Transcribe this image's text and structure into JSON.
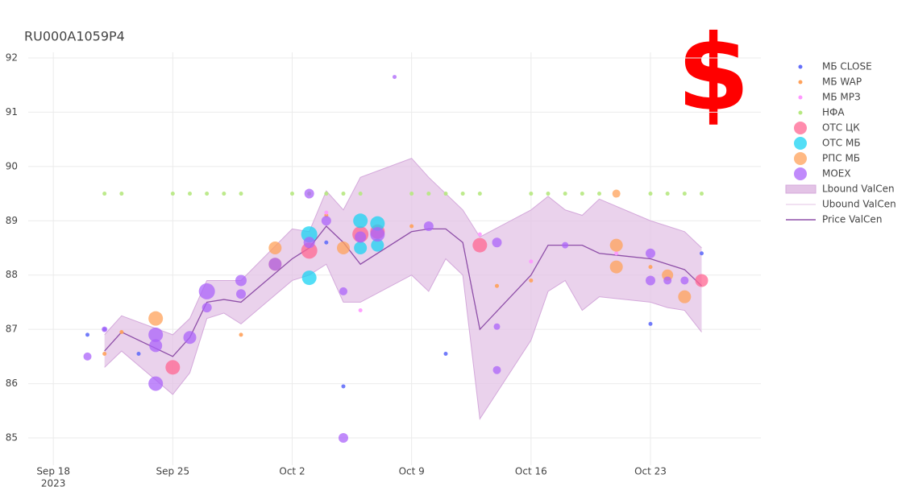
{
  "chart_data": {
    "type": "scatter",
    "title": "RU000A1059P4",
    "overlay_text": "$",
    "grid": true,
    "legend_position": "right",
    "xlim": [
      "2023-09-17",
      "2023-10-29"
    ],
    "ylim": [
      85,
      92.4
    ],
    "yticks": [
      85,
      86,
      87,
      88,
      89,
      90,
      91,
      92
    ],
    "xticks": [
      {
        "value": "2023-09-18",
        "label": "Sep 18",
        "sublabel": "2023"
      },
      {
        "value": "2023-09-25",
        "label": "Sep 25"
      },
      {
        "value": "2023-10-02",
        "label": "Oct 2"
      },
      {
        "value": "2023-10-09",
        "label": "Oct 9"
      },
      {
        "value": "2023-10-16",
        "label": "Oct 16"
      },
      {
        "value": "2023-10-23",
        "label": "Oct 23"
      }
    ],
    "series": [
      {
        "name": "МБ CLOSE",
        "mode": "markers",
        "color": "#636efa",
        "x": [
          "2023-09-20",
          "2023-09-21",
          "2023-09-23",
          "2023-10-04",
          "2023-10-05",
          "2023-10-11",
          "2023-10-23",
          "2023-10-26"
        ],
        "values": [
          86.9,
          87.0,
          86.55,
          88.6,
          85.95,
          86.55,
          87.1,
          88.4
        ]
      },
      {
        "name": "МБ WAP",
        "mode": "markers",
        "color": "#ffa15a",
        "x": [
          "2023-09-21",
          "2023-09-22",
          "2023-09-29",
          "2023-10-04",
          "2023-10-09",
          "2023-10-14",
          "2023-10-16",
          "2023-10-23"
        ],
        "values": [
          86.55,
          86.95,
          86.9,
          89.1,
          88.9,
          87.8,
          87.9,
          88.15
        ]
      },
      {
        "name": "МБ МРЗ",
        "mode": "markers",
        "color": "#ff97ff",
        "x": [
          "2023-10-04",
          "2023-10-06",
          "2023-10-13",
          "2023-10-16",
          "2023-10-21"
        ],
        "values": [
          89.15,
          87.35,
          88.75,
          88.25,
          88.4
        ]
      },
      {
        "name": "НФА",
        "mode": "markers",
        "color": "#b6e880",
        "x": [
          "2023-09-21",
          "2023-09-22",
          "2023-09-25",
          "2023-09-26",
          "2023-09-27",
          "2023-09-28",
          "2023-09-29",
          "2023-10-02",
          "2023-10-03",
          "2023-10-04",
          "2023-10-05",
          "2023-10-06",
          "2023-10-09",
          "2023-10-10",
          "2023-10-11",
          "2023-10-12",
          "2023-10-13",
          "2023-10-16",
          "2023-10-17",
          "2023-10-18",
          "2023-10-19",
          "2023-10-20",
          "2023-10-23",
          "2023-10-24",
          "2023-10-25",
          "2023-10-26"
        ],
        "values": [
          89.5,
          89.5,
          89.5,
          89.5,
          89.5,
          89.5,
          89.5,
          89.5,
          89.5,
          89.5,
          89.5,
          89.5,
          89.5,
          89.5,
          89.5,
          89.5,
          89.5,
          89.5,
          89.5,
          89.5,
          89.5,
          89.5,
          89.5,
          89.5,
          89.5,
          89.5
        ]
      },
      {
        "name": "ОТС ЦК",
        "mode": "bubbles",
        "color": "#ff6692",
        "x": [
          "2023-09-25",
          "2023-10-03",
          "2023-10-06",
          "2023-10-07",
          "2023-10-13",
          "2023-10-26"
        ],
        "values": [
          86.3,
          88.45,
          88.75,
          88.8,
          88.55,
          87.9
        ],
        "sizes": [
          18,
          20,
          20,
          18,
          18,
          16
        ]
      },
      {
        "name": "ОТС МБ",
        "mode": "bubbles",
        "color": "#19d3f3",
        "x": [
          "2023-10-03",
          "2023-10-03",
          "2023-10-06",
          "2023-10-06",
          "2023-10-07",
          "2023-10-07"
        ],
        "values": [
          87.95,
          88.75,
          89.0,
          88.5,
          88.95,
          88.55
        ],
        "sizes": [
          18,
          20,
          18,
          16,
          18,
          16
        ]
      },
      {
        "name": "РПС МБ",
        "mode": "bubbles",
        "color": "#ffa15a",
        "x": [
          "2023-09-24",
          "2023-10-01",
          "2023-10-01",
          "2023-10-05",
          "2023-10-21",
          "2023-10-21",
          "2023-10-21",
          "2023-10-24",
          "2023-10-25"
        ],
        "values": [
          87.2,
          88.5,
          88.2,
          88.5,
          88.15,
          88.55,
          89.5,
          88.0,
          87.6
        ],
        "sizes": [
          18,
          16,
          16,
          16,
          16,
          16,
          10,
          14,
          16
        ]
      },
      {
        "name": "MOEX",
        "mode": "bubbles",
        "color": "#ab63fa",
        "x": [
          "2023-09-20",
          "2023-09-21",
          "2023-09-24",
          "2023-09-24",
          "2023-09-24",
          "2023-09-26",
          "2023-09-27",
          "2023-09-27",
          "2023-09-29",
          "2023-09-29",
          "2023-10-01",
          "2023-10-03",
          "2023-10-03",
          "2023-10-04",
          "2023-10-05",
          "2023-10-05",
          "2023-10-06",
          "2023-10-07",
          "2023-10-08",
          "2023-10-10",
          "2023-10-14",
          "2023-10-14",
          "2023-10-14",
          "2023-10-18",
          "2023-10-23",
          "2023-10-23",
          "2023-10-24",
          "2023-10-25"
        ],
        "values": [
          86.5,
          87.0,
          86.0,
          86.9,
          86.7,
          86.85,
          87.4,
          87.7,
          87.65,
          87.9,
          88.2,
          88.6,
          89.5,
          89.0,
          85.0,
          87.7,
          88.7,
          88.75,
          91.65,
          88.9,
          88.6,
          86.25,
          87.05,
          88.55,
          87.9,
          88.4,
          87.9,
          87.9
        ],
        "sizes": [
          10,
          7,
          18,
          18,
          16,
          16,
          12,
          20,
          12,
          14,
          16,
          14,
          12,
          12,
          12,
          10,
          14,
          18,
          5,
          12,
          12,
          10,
          8,
          8,
          12,
          12,
          10,
          10
        ]
      },
      {
        "name": "Lbound ValCen",
        "mode": "band",
        "color": "#e3c3e6",
        "x": [
          "2023-09-21",
          "2023-09-22",
          "2023-09-25",
          "2023-09-26",
          "2023-09-27",
          "2023-09-28",
          "2023-09-29",
          "2023-10-02",
          "2023-10-03",
          "2023-10-04",
          "2023-10-05",
          "2023-10-06",
          "2023-10-09",
          "2023-10-10",
          "2023-10-11",
          "2023-10-12",
          "2023-10-13",
          "2023-10-16",
          "2023-10-17",
          "2023-10-18",
          "2023-10-19",
          "2023-10-20",
          "2023-10-23",
          "2023-10-24",
          "2023-10-25",
          "2023-10-26"
        ],
        "values": [
          86.3,
          86.6,
          85.8,
          86.2,
          87.2,
          87.3,
          87.1,
          87.9,
          88.0,
          88.2,
          87.5,
          87.5,
          88.0,
          87.7,
          88.3,
          88.0,
          85.35,
          86.8,
          87.7,
          87.9,
          87.35,
          87.6,
          87.5,
          87.4,
          87.35,
          86.95
        ]
      },
      {
        "name": "Ubound ValCen",
        "mode": "bound",
        "color": "#e3c3e6",
        "x": [
          "2023-09-21",
          "2023-09-22",
          "2023-09-25",
          "2023-09-26",
          "2023-09-27",
          "2023-09-28",
          "2023-09-29",
          "2023-10-02",
          "2023-10-03",
          "2023-10-04",
          "2023-10-05",
          "2023-10-06",
          "2023-10-09",
          "2023-10-10",
          "2023-10-11",
          "2023-10-12",
          "2023-10-13",
          "2023-10-16",
          "2023-10-17",
          "2023-10-18",
          "2023-10-19",
          "2023-10-20",
          "2023-10-23",
          "2023-10-24",
          "2023-10-25",
          "2023-10-26"
        ],
        "values": [
          86.9,
          87.25,
          86.9,
          87.2,
          87.9,
          87.9,
          87.9,
          88.85,
          88.8,
          89.55,
          89.2,
          89.8,
          90.15,
          89.8,
          89.5,
          89.2,
          88.7,
          89.2,
          89.45,
          89.2,
          89.1,
          89.4,
          89.0,
          88.9,
          88.8,
          88.5
        ]
      },
      {
        "name": "Price ValCen",
        "mode": "line",
        "color": "#8e4fa8",
        "x": [
          "2023-09-21",
          "2023-09-22",
          "2023-09-25",
          "2023-09-26",
          "2023-09-27",
          "2023-09-28",
          "2023-09-29",
          "2023-10-02",
          "2023-10-03",
          "2023-10-04",
          "2023-10-05",
          "2023-10-06",
          "2023-10-09",
          "2023-10-10",
          "2023-10-11",
          "2023-10-12",
          "2023-10-13",
          "2023-10-16",
          "2023-10-17",
          "2023-10-18",
          "2023-10-19",
          "2023-10-20",
          "2023-10-23",
          "2023-10-24",
          "2023-10-25",
          "2023-10-26"
        ],
        "values": [
          86.6,
          86.95,
          86.5,
          86.85,
          87.5,
          87.55,
          87.5,
          88.3,
          88.5,
          88.9,
          88.6,
          88.2,
          88.8,
          88.85,
          88.85,
          88.6,
          87.0,
          88.0,
          88.55,
          88.55,
          88.55,
          88.4,
          88.3,
          88.2,
          88.1,
          87.8
        ]
      }
    ]
  }
}
